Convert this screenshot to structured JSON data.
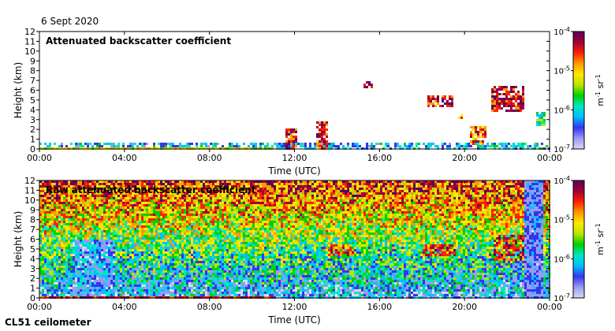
{
  "header": {
    "date": "6 Sept 2020"
  },
  "footer": {
    "instrument": "CL51 ceilometer"
  },
  "colors": {
    "axis": "#000000",
    "background": "#ffffff",
    "faint": "#e3e4f6"
  },
  "colorbar": {
    "tick_labels": [
      {
        "base": "10",
        "exp": "-4",
        "value": 0.0001
      },
      {
        "base": "10",
        "exp": "-5",
        "value": 1e-05
      },
      {
        "base": "10",
        "exp": "-6",
        "value": 1e-06
      },
      {
        "base": "10",
        "exp": "-7",
        "value": 1e-07
      }
    ],
    "unit": "m",
    "unit_exp": "-1",
    "unit2": "sr",
    "unit2_exp": "-1",
    "colormap": [
      "#d9d9f5",
      "#9a9af5",
      "#3535f0",
      "#00c0ff",
      "#00e8c0",
      "#00d000",
      "#b8e600",
      "#ffe800",
      "#ff9a00",
      "#ff2000",
      "#a00038",
      "#5a005a"
    ]
  },
  "chart_data": [
    {
      "type": "heatmap",
      "title": "Attenuated backscatter coefficient",
      "xlabel": "Time (UTC)",
      "ylabel": "Height (km)",
      "xlim": [
        0,
        24
      ],
      "ylim": [
        0,
        12
      ],
      "x_ticks": [
        0,
        4,
        8,
        12,
        16,
        20,
        24
      ],
      "x_tick_labels": [
        "00:00",
        "04:00",
        "08:00",
        "12:00",
        "16:00",
        "20:00",
        "00:00"
      ],
      "y_ticks": [
        0,
        1,
        2,
        3,
        4,
        5,
        6,
        7,
        8,
        9,
        10,
        11,
        12
      ],
      "y_tick_labels": [
        "0",
        "1",
        "2",
        "3",
        "4",
        "5",
        "6",
        "7",
        "8",
        "9",
        "10",
        "11",
        "12"
      ],
      "clim_log10": [
        -7,
        -4
      ],
      "features": [
        {
          "name": "boundary layer",
          "t": [
            0,
            24
          ],
          "h": [
            0.0,
            0.8
          ],
          "level": 0.3
        },
        {
          "name": "surface layer",
          "t": [
            0,
            11
          ],
          "h": [
            0.0,
            0.3
          ],
          "level": 0.6
        },
        {
          "name": "convective plume",
          "t": [
            11.5,
            12.1
          ],
          "h": [
            0.0,
            2.2
          ],
          "level": 0.85
        },
        {
          "name": "convective plume",
          "t": [
            13.0,
            13.5
          ],
          "h": [
            0.0,
            3.0
          ],
          "level": 0.8
        },
        {
          "name": "cloud",
          "t": [
            15.2,
            15.6
          ],
          "h": [
            6.4,
            7.1
          ],
          "level": 0.9
        },
        {
          "name": "cloud",
          "t": [
            18.2,
            19.4
          ],
          "h": [
            4.5,
            5.5
          ],
          "level": 0.85
        },
        {
          "name": "cloud",
          "t": [
            19.6,
            19.9
          ],
          "h": [
            3.3,
            3.6
          ],
          "level": 0.7
        },
        {
          "name": "low cloud",
          "t": [
            20.2,
            21.0
          ],
          "h": [
            0.5,
            2.5
          ],
          "level": 0.75
        },
        {
          "name": "cloud",
          "t": [
            21.2,
            22.8
          ],
          "h": [
            4.0,
            6.5
          ],
          "level": 0.85
        },
        {
          "name": "cloud",
          "t": [
            23.3,
            23.8
          ],
          "h": [
            2.5,
            4.0
          ],
          "level": 0.4
        }
      ]
    },
    {
      "type": "heatmap",
      "title": "Raw attenuated backscatter coefficient",
      "xlabel": "Time (UTC)",
      "ylabel": "Height (km)",
      "xlim": [
        0,
        24
      ],
      "ylim": [
        0,
        12
      ],
      "x_ticks": [
        0,
        4,
        8,
        12,
        16,
        20,
        24
      ],
      "x_tick_labels": [
        "00:00",
        "04:00",
        "08:00",
        "12:00",
        "16:00",
        "20:00",
        "00:00"
      ],
      "y_ticks": [
        0,
        1,
        2,
        3,
        4,
        5,
        6,
        7,
        8,
        9,
        10,
        11,
        12
      ],
      "y_tick_labels": [
        "0",
        "1",
        "2",
        "3",
        "4",
        "5",
        "6",
        "7",
        "8",
        "9",
        "10",
        "11",
        "12"
      ],
      "clim_log10": [
        -7,
        -4
      ],
      "features": [
        {
          "name": "noisy background",
          "t": [
            0,
            24
          ],
          "h": [
            0,
            12
          ],
          "level": 0.55
        },
        {
          "name": "surface layer",
          "t": [
            0,
            11
          ],
          "h": [
            0.0,
            0.4
          ],
          "level": 0.85
        },
        {
          "name": "cloud",
          "t": [
            13.5,
            14.8
          ],
          "h": [
            4.5,
            5.5
          ],
          "level": 0.75
        },
        {
          "name": "cloud",
          "t": [
            18.0,
            19.5
          ],
          "h": [
            4.3,
            5.7
          ],
          "level": 0.8
        },
        {
          "name": "cloud",
          "t": [
            21.3,
            22.8
          ],
          "h": [
            4.0,
            6.5
          ],
          "level": 0.8
        }
      ]
    }
  ]
}
